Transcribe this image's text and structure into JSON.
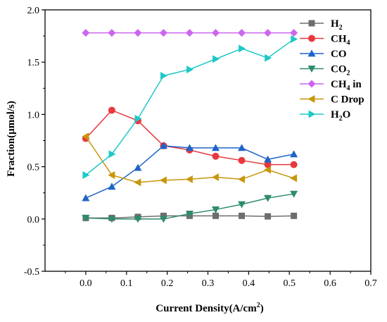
{
  "chart_data": {
    "type": "line",
    "xlabel_main": "Current Density(A/cm",
    "xlabel_sup": "2",
    "xlabel_end": ")",
    "ylabel": "Fraction(µmol/s)",
    "xlim": [
      -0.1,
      0.7
    ],
    "ylim": [
      -0.5,
      2.0
    ],
    "xticks": [
      "0.0",
      "0.1",
      "0.2",
      "0.3",
      "0.4",
      "0.5",
      "0.6",
      "0.7"
    ],
    "yticks": [
      "-0.5",
      "0.0",
      "0.5",
      "1.0",
      "1.5",
      "2.0"
    ],
    "xtick_values": [
      0.0,
      0.1,
      0.2,
      0.3,
      0.4,
      0.5,
      0.6,
      0.7
    ],
    "ytick_values": [
      -0.5,
      0.0,
      0.5,
      1.0,
      1.5,
      2.0
    ],
    "grid": false,
    "legend_position": "top-right",
    "x": [
      0.0,
      0.064,
      0.128,
      0.191,
      0.255,
      0.319,
      0.383,
      0.447,
      0.511
    ],
    "series": [
      {
        "name": "H",
        "sub": "2",
        "suffix": "",
        "color": "#6d6d6d",
        "marker": "square",
        "values": [
          0.01,
          0.01,
          0.02,
          0.03,
          0.03,
          0.03,
          0.03,
          0.025,
          0.03
        ]
      },
      {
        "name": "CH",
        "sub": "4",
        "suffix": "",
        "color": "#e8383d",
        "marker": "circle",
        "values": [
          0.77,
          1.04,
          0.94,
          0.7,
          0.66,
          0.6,
          0.56,
          0.52,
          0.52
        ]
      },
      {
        "name": "CO",
        "sub": "",
        "suffix": "",
        "color": "#1e64c8",
        "marker": "triangle-up",
        "values": [
          0.2,
          0.31,
          0.49,
          0.7,
          0.68,
          0.68,
          0.68,
          0.57,
          0.62
        ]
      },
      {
        "name": "CO",
        "sub": "2",
        "suffix": "",
        "color": "#2e8b6e",
        "marker": "triangle-down",
        "values": [
          0.01,
          0.0,
          0.0,
          0.0,
          0.05,
          0.09,
          0.14,
          0.2,
          0.24
        ]
      },
      {
        "name": "CH",
        "sub": "4",
        "suffix": " in",
        "color": "#cc66ee",
        "marker": "diamond",
        "values": [
          1.78,
          1.78,
          1.78,
          1.78,
          1.78,
          1.78,
          1.78,
          1.78,
          1.78
        ]
      },
      {
        "name": "C Drop",
        "sub": "",
        "suffix": "",
        "color": "#c8960a",
        "marker": "triangle-left",
        "values": [
          0.79,
          0.42,
          0.35,
          0.37,
          0.38,
          0.4,
          0.38,
          0.47,
          0.39
        ]
      },
      {
        "name": "H",
        "sub": "2",
        "suffix": "O",
        "color": "#1ec8c8",
        "marker": "triangle-right",
        "values": [
          0.42,
          0.62,
          0.96,
          1.37,
          1.43,
          1.53,
          1.63,
          1.54,
          1.72
        ]
      }
    ]
  }
}
